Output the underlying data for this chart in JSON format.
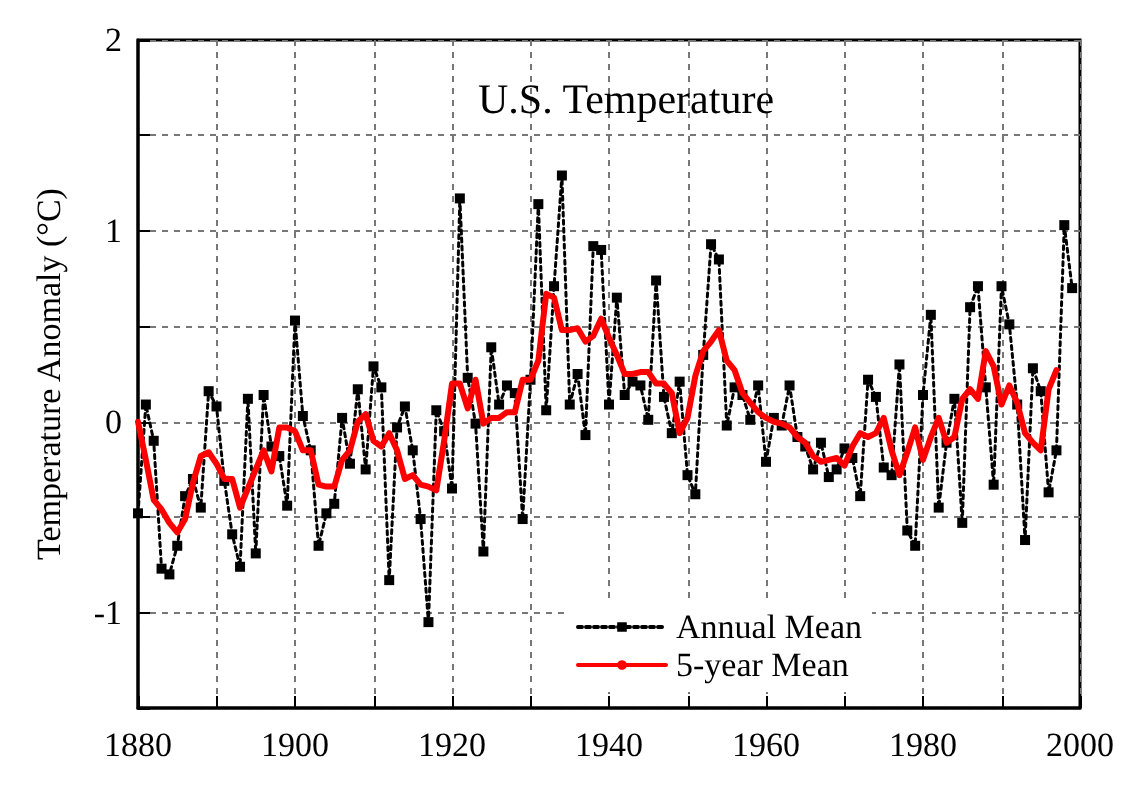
{
  "chart_data": {
    "type": "line",
    "title": "U.S. Temperature",
    "ylabel": "Temperature Anomaly (°C)",
    "xlim": [
      1880,
      2000
    ],
    "ylim": [
      -1.5,
      2
    ],
    "xticks": [
      1880,
      {
        "value": 1890,
        "label": null
      },
      1900,
      {
        "value": 1910,
        "label": null
      },
      1920,
      {
        "value": 1930,
        "label": null
      },
      1940,
      {
        "value": 1950,
        "label": null
      },
      1960,
      {
        "value": 1970,
        "label": null
      },
      1980,
      {
        "value": 1990,
        "label": null
      },
      2000
    ],
    "yticks": [
      {
        "value": -1.5,
        "label": null
      },
      -1,
      {
        "value": -0.5,
        "label": null
      },
      0,
      {
        "value": 0.5,
        "label": null
      },
      1,
      {
        "value": 1.5,
        "label": null
      },
      2
    ],
    "grid": true,
    "legend": "bottom",
    "series": [
      {
        "name": "Annual Mean",
        "color": "#000000",
        "marker": "square",
        "line_style": "dotted",
        "x": [
          1880,
          1881,
          1882,
          1883,
          1884,
          1885,
          1886,
          1887,
          1888,
          1889,
          1890,
          1891,
          1892,
          1893,
          1894,
          1895,
          1896,
          1897,
          1898,
          1899,
          1900,
          1901,
          1902,
          1903,
          1904,
          1905,
          1906,
          1907,
          1908,
          1909,
          1910,
          1911,
          1912,
          1913,
          1914,
          1915,
          1916,
          1917,
          1918,
          1919,
          1920,
          1921,
          1922,
          1923,
          1924,
          1925,
          1926,
          1927,
          1928,
          1929,
          1930,
          1931,
          1932,
          1933,
          1934,
          1935,
          1936,
          1937,
          1938,
          1939,
          1940,
          1941,
          1942,
          1943,
          1944,
          1945,
          1946,
          1947,
          1948,
          1949,
          1950,
          1951,
          1952,
          1953,
          1954,
          1955,
          1956,
          1957,
          1958,
          1959,
          1960,
          1961,
          1962,
          1963,
          1964,
          1965,
          1966,
          1967,
          1968,
          1969,
          1970,
          1971,
          1972,
          1973,
          1974,
          1975,
          1976,
          1977,
          1978,
          1979,
          1980,
          1981,
          1982,
          1983,
          1984,
          1985,
          1986,
          1987,
          1988,
          1989,
          1990,
          1991,
          1992,
          1993,
          1994,
          1995,
          1996,
          1997,
          1998,
          1999
        ],
        "values": [
          -0.48,
          0.09,
          -0.1,
          -0.77,
          -0.8,
          -0.65,
          -0.39,
          -0.3,
          -0.45,
          0.16,
          0.08,
          -0.31,
          -0.59,
          -0.76,
          0.12,
          -0.69,
          0.14,
          -0.13,
          -0.18,
          -0.44,
          0.53,
          0.03,
          -0.15,
          -0.65,
          -0.48,
          -0.43,
          0.02,
          -0.22,
          0.17,
          -0.25,
          0.29,
          0.18,
          -0.83,
          -0.03,
          0.08,
          -0.15,
          -0.51,
          -1.05,
          0.06,
          -0.05,
          -0.35,
          1.17,
          0.23,
          -0.01,
          -0.68,
          0.39,
          0.09,
          0.19,
          0.15,
          -0.51,
          0.22,
          1.14,
          0.06,
          0.71,
          1.29,
          0.09,
          0.25,
          -0.07,
          0.92,
          0.9,
          0.09,
          0.65,
          0.14,
          0.21,
          0.19,
          0.01,
          0.74,
          0.13,
          -0.06,
          0.21,
          -0.28,
          -0.38,
          0.35,
          0.93,
          0.85,
          -0.02,
          0.18,
          0.14,
          0.01,
          0.19,
          -0.21,
          0.02,
          -0.02,
          0.19,
          -0.08,
          -0.13,
          -0.25,
          -0.11,
          -0.29,
          -0.25,
          -0.14,
          -0.19,
          -0.39,
          0.22,
          0.13,
          -0.24,
          -0.28,
          0.3,
          -0.57,
          -0.65,
          0.14,
          0.56,
          -0.45,
          -0.11,
          0.12,
          -0.53,
          0.6,
          0.71,
          0.18,
          -0.33,
          0.71,
          0.51,
          0.09,
          -0.62,
          0.28,
          0.16,
          -0.37,
          -0.15,
          1.03,
          0.7
        ]
      },
      {
        "name": "5-year Mean",
        "color": "#ff0000",
        "marker": "none",
        "line_style": "solid",
        "x": [
          1880,
          1881,
          1882,
          1883,
          1884,
          1885,
          1886,
          1887,
          1888,
          1889,
          1890,
          1891,
          1892,
          1893,
          1894,
          1895,
          1896,
          1897,
          1898,
          1899,
          1900,
          1901,
          1902,
          1903,
          1904,
          1905,
          1906,
          1907,
          1908,
          1909,
          1910,
          1911,
          1912,
          1913,
          1914,
          1915,
          1916,
          1917,
          1918,
          1919,
          1920,
          1921,
          1922,
          1923,
          1924,
          1925,
          1926,
          1927,
          1928,
          1929,
          1930,
          1931,
          1932,
          1933,
          1934,
          1935,
          1936,
          1937,
          1938,
          1939,
          1940,
          1941,
          1942,
          1943,
          1944,
          1945,
          1946,
          1947,
          1948,
          1949,
          1950,
          1951,
          1952,
          1953,
          1954,
          1955,
          1956,
          1957,
          1958,
          1959,
          1960,
          1961,
          1962,
          1963,
          1964,
          1965,
          1966,
          1967,
          1968,
          1969,
          1970,
          1971,
          1972,
          1973,
          1974,
          1975,
          1976,
          1977,
          1978,
          1979,
          1980,
          1981,
          1982,
          1983,
          1984,
          1985,
          1986,
          1987,
          1988,
          1989,
          1990,
          1991,
          1992,
          1993,
          1994,
          1995,
          1996,
          1997
        ],
        "values": [
          0.0,
          -0.2,
          -0.41,
          -0.46,
          -0.53,
          -0.58,
          -0.51,
          -0.32,
          -0.18,
          -0.16,
          -0.22,
          -0.3,
          -0.3,
          -0.45,
          -0.35,
          -0.25,
          -0.15,
          -0.26,
          -0.03,
          -0.03,
          -0.05,
          -0.15,
          -0.15,
          -0.33,
          -0.34,
          -0.34,
          -0.2,
          -0.15,
          0.0,
          0.04,
          -0.1,
          -0.13,
          -0.06,
          -0.15,
          -0.3,
          -0.28,
          -0.33,
          -0.34,
          -0.36,
          -0.1,
          0.2,
          0.2,
          0.07,
          0.22,
          -0.01,
          0.02,
          0.02,
          0.05,
          0.05,
          0.22,
          0.22,
          0.32,
          0.67,
          0.65,
          0.48,
          0.48,
          0.49,
          0.42,
          0.45,
          0.54,
          0.44,
          0.35,
          0.25,
          0.25,
          0.26,
          0.26,
          0.2,
          0.2,
          0.15,
          -0.06,
          0.02,
          0.24,
          0.37,
          0.42,
          0.48,
          0.32,
          0.27,
          0.15,
          0.1,
          0.05,
          0.02,
          0.0,
          -0.01,
          -0.03,
          -0.08,
          -0.11,
          -0.18,
          -0.21,
          -0.2,
          -0.19,
          -0.23,
          -0.13,
          -0.06,
          -0.08,
          -0.06,
          0.02,
          -0.15,
          -0.28,
          -0.16,
          -0.03,
          -0.2,
          -0.08,
          0.02,
          -0.11,
          -0.08,
          0.12,
          0.17,
          0.12,
          0.37,
          0.29,
          0.09,
          0.19,
          0.1,
          -0.06,
          -0.11,
          -0.15,
          0.17,
          0.27
        ]
      }
    ]
  }
}
